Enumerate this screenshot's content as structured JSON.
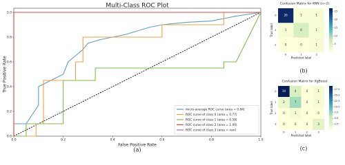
{
  "chart_data": [
    {
      "type": "line",
      "title": "Multi-Class ROC Plot",
      "caption": "(a)",
      "x_label": "False Positive Rate",
      "y_label": "True Positive Rate",
      "xlim": [
        0,
        1
      ],
      "ylim": [
        0,
        1
      ],
      "xticks": [
        {
          "value": 0,
          "label": "0.0"
        },
        0.2,
        0.4,
        0.6,
        0.8,
        {
          "value": 1,
          "label": "1.0"
        }
      ],
      "yticks": [
        {
          "value": 0,
          "label": "0.0"
        },
        0.2,
        0.4,
        0.6,
        0.8,
        {
          "value": 1,
          "label": "1.0"
        }
      ],
      "legend": "lower right",
      "diagonal": true,
      "series": [
        {
          "name": "micro-average ROC curve (area = 0.84)",
          "color": "#5b9ec9",
          "x": [
            0,
            0,
            0.05,
            0.1,
            0.1,
            0.15,
            0.2,
            0.22,
            0.25,
            0.28,
            0.3,
            0.35,
            0.4,
            0.45,
            0.5,
            0.55,
            0.6,
            0.7,
            0.8,
            0.85,
            0.9,
            1
          ],
          "values": [
            0,
            0.1,
            0.1,
            0.25,
            0.4,
            0.45,
            0.5,
            0.6,
            0.65,
            0.7,
            0.75,
            0.78,
            0.8,
            0.82,
            0.85,
            0.88,
            0.9,
            0.92,
            0.93,
            0.95,
            0.97,
            1
          ]
        },
        {
          "name": "ROC curve of class 0 (area = 0.77)",
          "color": "#f0a040",
          "x": [
            0,
            0.09,
            0.09,
            0.12,
            0.12,
            0.25,
            0.25,
            0.28,
            0.28,
            0.6,
            0.6,
            0.85,
            0.85,
            1
          ],
          "values": [
            0,
            0,
            0.1,
            0.1,
            0.45,
            0.45,
            0.6,
            0.6,
            0.8,
            0.8,
            0.9,
            0.9,
            1,
            1
          ]
        },
        {
          "name": "ROC curve of class 1 (area = 0.58)",
          "color": "#7cbf4a",
          "x": [
            0,
            0.05,
            0.05,
            0.2,
            0.2,
            0.33,
            0.33,
            0.85,
            0.85,
            0.9,
            1
          ],
          "values": [
            0,
            0,
            0.1,
            0.1,
            0.45,
            0.45,
            0.55,
            0.55,
            0.6,
            0.6,
            1
          ]
        },
        {
          "name": "ROC curve of class 2 (area = 1.00)",
          "color": "#e8413c",
          "x": [
            0,
            0,
            1
          ],
          "values": [
            0,
            1,
            1
          ]
        },
        {
          "name": "ROC curve of class 3 (area = nan)",
          "color": "#a070c0"
        }
      ]
    },
    {
      "type": "heatmap",
      "title": "Confusion Matrix for KNN (n=2)",
      "caption": "(b)",
      "x_label": "Predicted label",
      "y_label": "True label",
      "categories": [
        "0",
        "1",
        "2"
      ],
      "values": [
        [
          26,
          1,
          1
        ],
        [
          1,
          6,
          1
        ],
        [
          0,
          0,
          1
        ]
      ],
      "clim": [
        0,
        27
      ],
      "cticks": [
        5,
        10,
        15,
        20,
        25
      ]
    },
    {
      "type": "heatmap",
      "title": "Confusion Matrix for XgBoost",
      "caption": "(c)",
      "x_label": "Predicted label",
      "y_label": "True label",
      "categories": [
        "0",
        "1",
        "2",
        "3"
      ],
      "values": [
        [
          19,
          4,
          0,
          1
        ],
        [
          2,
          7,
          0,
          1
        ],
        [
          0,
          1,
          0,
          0
        ],
        [
          0,
          0,
          0,
          3
        ]
      ],
      "clim": [
        0,
        19
      ],
      "cticks": [
        {
          "value": 2.5,
          "label": "2.5"
        },
        {
          "value": 5,
          "label": "5.0"
        },
        {
          "value": 7.5,
          "label": "7.5"
        },
        {
          "value": 10,
          "label": "10.0"
        },
        {
          "value": 12.5,
          "label": "12.5"
        },
        {
          "value": 15,
          "label": "15.0"
        },
        {
          "value": 17.5,
          "label": "17.5"
        }
      ]
    }
  ]
}
